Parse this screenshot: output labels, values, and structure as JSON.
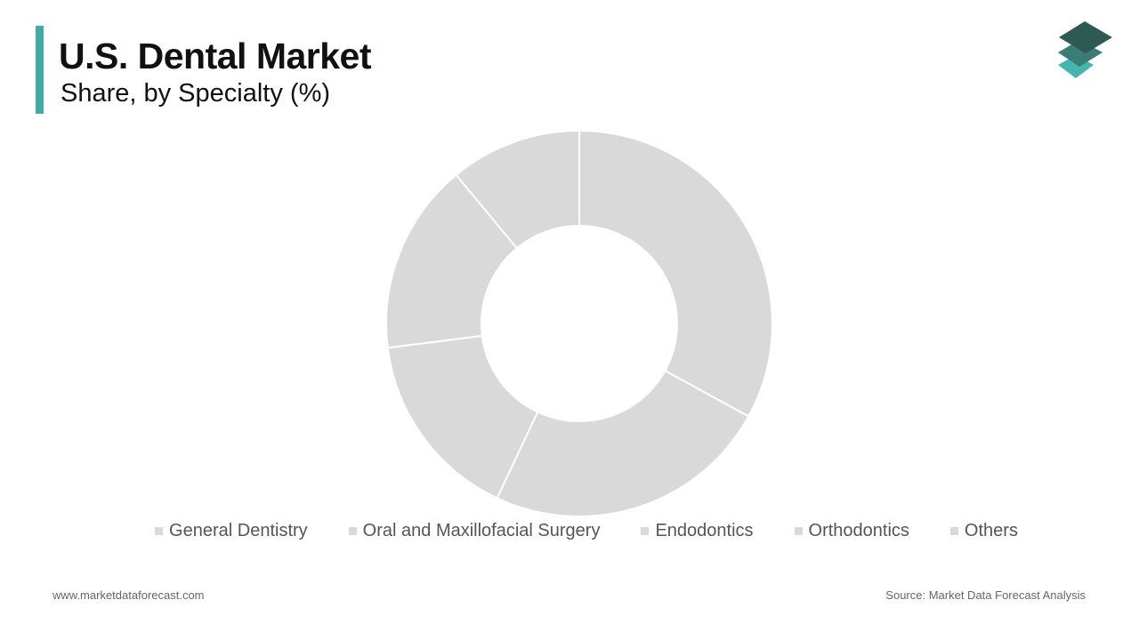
{
  "chart_data": {
    "type": "donut",
    "title": "U.S. Dental Market",
    "subtitle": "Share, by Specialty (%)",
    "categories": [
      "General Dentistry",
      "Oral and Maxillofacial Surgery",
      "Endodontics",
      "Orthodontics",
      "Others"
    ],
    "values": [
      33,
      24,
      16,
      16,
      11
    ],
    "color": "#d9d9d9"
  },
  "footer": {
    "website": "www.marketdataforecast.com",
    "source": "Source: Market Data Forecast Analysis"
  }
}
